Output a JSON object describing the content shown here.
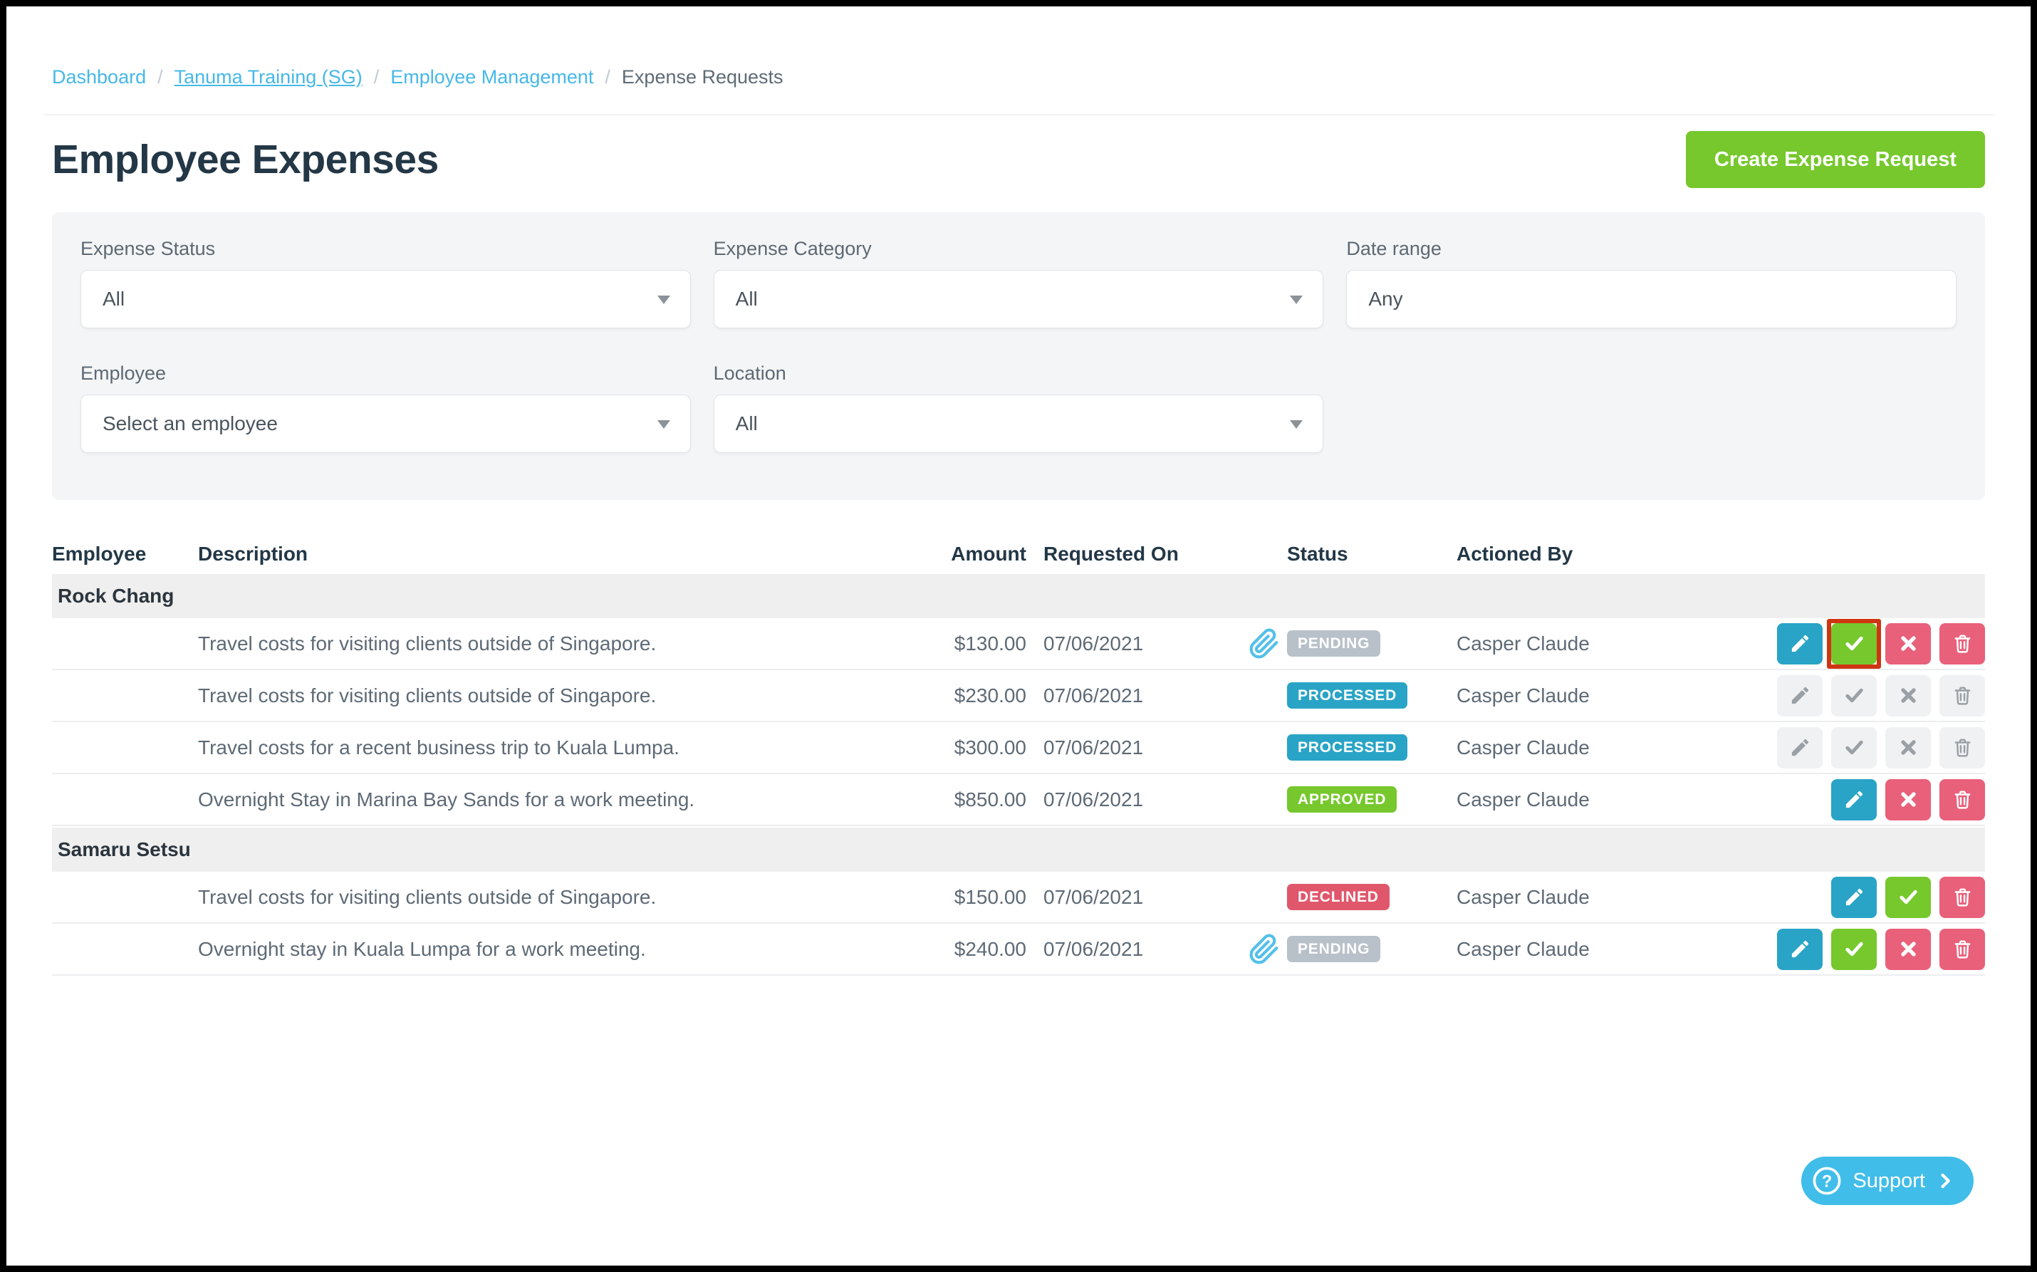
{
  "breadcrumb": {
    "separator": "/",
    "items": [
      {
        "label": "Dashboard"
      },
      {
        "label": "Tanuma Training (SG)"
      },
      {
        "label": "Employee Management"
      }
    ],
    "current": "Expense Requests"
  },
  "header": {
    "title": "Employee Expenses",
    "create_button_label": "Create Expense Request"
  },
  "filters": {
    "fields": [
      {
        "label": "Expense Status",
        "value": "All",
        "type": "select"
      },
      {
        "label": "Expense Category",
        "value": "All",
        "type": "select"
      },
      {
        "label": "Date range",
        "value": "Any",
        "type": "input"
      },
      {
        "label": "Employee",
        "value": "Select an employee",
        "type": "select"
      },
      {
        "label": "Location",
        "value": "All",
        "type": "select"
      }
    ]
  },
  "table": {
    "columns": [
      "Employee",
      "Description",
      "Amount",
      "Requested On",
      "Status",
      "Actioned By"
    ],
    "groups": [
      {
        "employee": "Rock Chang",
        "rows": [
          {
            "description": "Travel costs for visiting clients outside of Singapore.",
            "amount": "$130.00",
            "requested_on": "07/06/2021",
            "status": "PENDING",
            "has_attachment": true,
            "actioned_by": "Casper Claude",
            "actions": [
              "edit",
              "approve",
              "decline",
              "delete"
            ],
            "disabled": false,
            "highlighted_action": "approve"
          },
          {
            "description": "Travel costs for visiting clients outside of Singapore.",
            "amount": "$230.00",
            "requested_on": "07/06/2021",
            "status": "PROCESSED",
            "has_attachment": false,
            "actioned_by": "Casper Claude",
            "actions": [
              "edit",
              "approve",
              "decline",
              "delete"
            ],
            "disabled": true
          },
          {
            "description": "Travel costs for a recent business trip to Kuala Lumpa.",
            "amount": "$300.00",
            "requested_on": "07/06/2021",
            "status": "PROCESSED",
            "has_attachment": false,
            "actioned_by": "Casper Claude",
            "actions": [
              "edit",
              "approve",
              "decline",
              "delete"
            ],
            "disabled": true
          },
          {
            "description": "Overnight Stay in Marina Bay Sands for a work meeting.",
            "amount": "$850.00",
            "requested_on": "07/06/2021",
            "status": "APPROVED",
            "has_attachment": false,
            "actioned_by": "Casper Claude",
            "actions": [
              "edit",
              "decline",
              "delete"
            ],
            "disabled": false
          }
        ]
      },
      {
        "employee": "Samaru Setsu",
        "rows": [
          {
            "description": "Travel costs for visiting clients outside of Singapore.",
            "amount": "$150.00",
            "requested_on": "07/06/2021",
            "status": "DECLINED",
            "has_attachment": false,
            "actioned_by": "Casper Claude",
            "actions": [
              "edit",
              "approve",
              "delete"
            ],
            "disabled": false
          },
          {
            "description": "Overnight stay in Kuala Lumpa for a work meeting.",
            "amount": "$240.00",
            "requested_on": "07/06/2021",
            "status": "PENDING",
            "has_attachment": true,
            "actioned_by": "Casper Claude",
            "actions": [
              "edit",
              "approve",
              "decline",
              "delete"
            ],
            "disabled": false
          }
        ]
      }
    ]
  },
  "status_colors": {
    "PENDING": "#b8c1c9",
    "PROCESSED": "#29a4c6",
    "APPROVED": "#76c82d",
    "DECLINED": "#e0566b"
  },
  "support": {
    "label": "Support"
  },
  "colors": {
    "accent_green": "#76c82d",
    "accent_teal": "#29a4c6",
    "accent_pink": "#e9607a",
    "link_blue": "#45b8e8",
    "support_blue": "#41bde9",
    "attachment_blue": "#54c0ea",
    "annotation_outline": "#ce3511",
    "title_text": "#233746",
    "body_text": "#5e6a76"
  },
  "icons": {
    "edit": "pencil-icon",
    "approve": "check-icon",
    "decline": "x-icon",
    "delete": "trash-icon",
    "attachment": "paperclip-icon",
    "support": "question-circle-icon",
    "support_arrow": "chevron-right-icon",
    "select": "caret-down-icon"
  }
}
